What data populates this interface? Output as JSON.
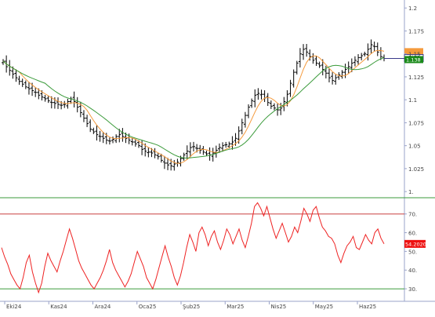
{
  "chart_data": [
    {
      "type": "ohlc",
      "y_ticks": [
        "1.2",
        "1.175",
        "1.15",
        "1.125",
        "1.1",
        "1.075",
        "1.05",
        "1.025",
        "1."
      ],
      "ylim": [
        0.995,
        1.207
      ],
      "last_price_label": "1.1453",
      "ma_label": "1.138",
      "colors": {
        "bars": "#000000",
        "ma_fast": "#f59a3c",
        "ma_slow": "#3b9b3b",
        "price_tag": "#3a3a8a",
        "fast_tag": "#f59a3c",
        "slow_tag": "#1a8a1a"
      },
      "price_series": [
        1.142,
        1.136,
        1.132,
        1.128,
        1.124,
        1.12,
        1.117,
        1.114,
        1.112,
        1.11,
        1.108,
        1.105,
        1.103,
        1.101,
        1.099,
        1.097,
        1.096,
        1.095,
        1.094,
        1.095,
        1.098,
        1.101,
        1.098,
        1.092,
        1.086,
        1.08,
        1.074,
        1.068,
        1.065,
        1.062,
        1.06,
        1.058,
        1.056,
        1.055,
        1.057,
        1.06,
        1.062,
        1.06,
        1.058,
        1.056,
        1.054,
        1.052,
        1.05,
        1.046,
        1.044,
        1.043,
        1.042,
        1.04,
        1.038,
        1.034,
        1.031,
        1.029,
        1.028,
        1.03,
        1.032,
        1.036,
        1.04,
        1.044,
        1.048,
        1.049,
        1.047,
        1.045,
        1.043,
        1.041,
        1.04,
        1.042,
        1.045,
        1.048,
        1.05,
        1.051,
        1.052,
        1.054,
        1.058,
        1.066,
        1.075,
        1.083,
        1.092,
        1.099,
        1.105,
        1.107,
        1.106,
        1.102,
        1.097,
        1.093,
        1.091,
        1.089,
        1.091,
        1.098,
        1.106,
        1.118,
        1.13,
        1.14,
        1.15,
        1.155,
        1.152,
        1.147,
        1.143,
        1.14,
        1.137,
        1.133,
        1.129,
        1.124,
        1.121,
        1.124,
        1.127,
        1.13,
        1.133,
        1.136,
        1.14,
        1.143,
        1.146,
        1.148,
        1.15,
        1.155,
        1.16,
        1.158,
        1.152,
        1.147,
        1.145
      ]
    },
    {
      "type": "line",
      "y_ticks": [
        "70.",
        "60.",
        "50.",
        "40.",
        "30."
      ],
      "ylim": [
        25,
        77
      ],
      "upper_band": 70,
      "lower_band": 30,
      "last_value_label": "54.2020",
      "colors": {
        "line": "#ee2222",
        "upper_band": "#c94040",
        "lower_band": "#3b9b3b",
        "tag": "#ee1111"
      },
      "x_tick_labels": [
        "Eki24",
        "Kas24",
        "Ara24",
        "Oca25",
        "Şub25",
        "Mar25",
        "Nis25",
        "May25",
        "Haz25"
      ],
      "values": [
        52,
        47,
        43,
        38,
        35,
        32,
        30,
        36,
        44,
        48,
        39,
        33,
        28,
        33,
        42,
        49,
        45,
        42,
        39,
        45,
        50,
        56,
        62,
        57,
        51,
        45,
        41,
        38,
        35,
        32,
        30,
        33,
        36,
        40,
        45,
        51,
        44,
        40,
        37,
        34,
        31,
        34,
        38,
        44,
        50,
        46,
        42,
        36,
        33,
        30,
        35,
        41,
        47,
        53,
        47,
        42,
        36,
        32,
        37,
        44,
        52,
        59,
        55,
        50,
        60,
        63,
        59,
        53,
        58,
        61,
        55,
        51,
        56,
        62,
        59,
        54,
        58,
        62,
        56,
        52,
        58,
        65,
        74,
        76,
        73,
        69,
        74,
        68,
        62,
        57,
        61,
        65,
        60,
        55,
        58,
        63,
        60,
        66,
        73,
        70,
        66,
        72,
        74,
        68,
        63,
        61,
        58,
        57,
        54,
        48,
        44,
        49,
        53,
        55,
        58,
        52,
        51,
        55,
        59,
        56,
        54,
        60,
        62,
        57,
        54
      ]
    }
  ]
}
